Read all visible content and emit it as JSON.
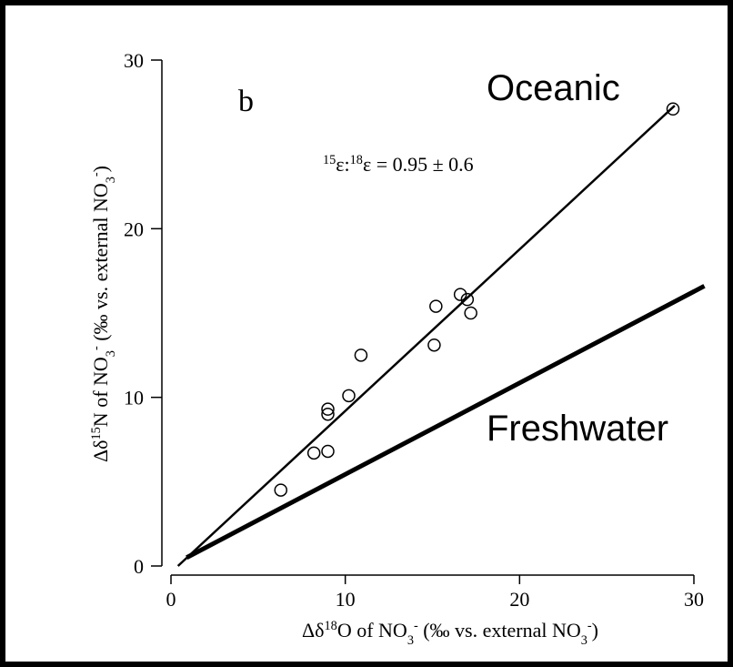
{
  "chart_data": {
    "type": "scatter",
    "panel_label": "b",
    "annotation": [
      "15",
      "ε:",
      "18",
      "ε = 0.95 ± 0.6"
    ],
    "x_label": [
      "Δδ",
      "18",
      "O of NO",
      "3",
      "-",
      " (‰ vs. external NO",
      "3",
      "-",
      ")"
    ],
    "y_label": [
      "Δδ",
      "15",
      "N of NO",
      "3",
      "-",
      " (‰ vs. external NO",
      "3",
      "-",
      ")"
    ],
    "xlim": [
      0,
      30
    ],
    "ylim": [
      0,
      30
    ],
    "xticks": [
      0,
      10,
      20,
      30
    ],
    "yticks": [
      0,
      10,
      20,
      30
    ],
    "x": [
      6.3,
      8.2,
      9.0,
      9.0,
      9.0,
      10.2,
      10.9,
      15.1,
      15.2,
      16.6,
      17.0,
      17.2,
      28.8
    ],
    "y": [
      4.5,
      6.7,
      6.8,
      9.3,
      9.0,
      10.1,
      12.5,
      13.1,
      15.4,
      16.1,
      15.8,
      15.0,
      27.1
    ],
    "color": "#000000",
    "lines": [
      {
        "name": "Oceanic",
        "x": [
          0.4,
          28.9
        ],
        "y": [
          0,
          27.3
        ],
        "color": "#000000"
      },
      {
        "name": "Freshwater",
        "x": [
          0.9,
          30.6
        ],
        "y": [
          0.5,
          16.6
        ],
        "color": "#000000"
      }
    ]
  }
}
